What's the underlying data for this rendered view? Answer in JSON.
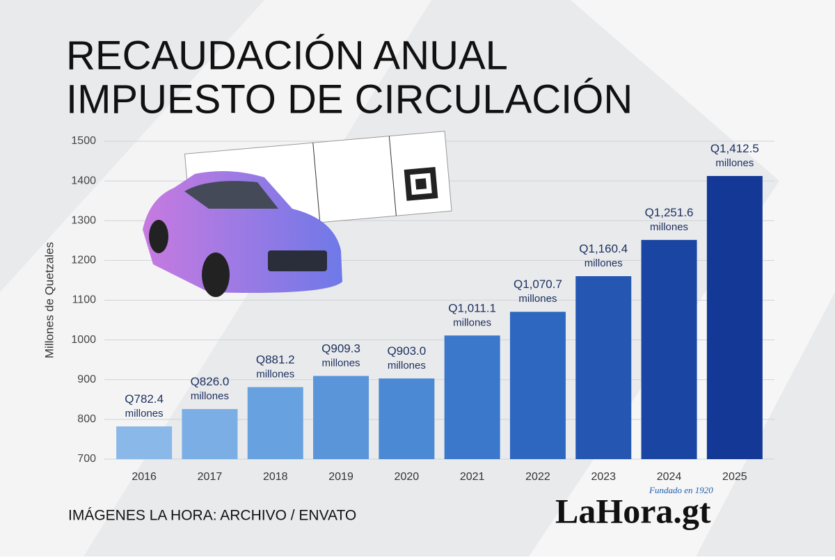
{
  "chart_data": {
    "type": "bar",
    "title": [
      "RECAUDACIÓN ANUAL",
      "IMPUESTO DE CIRCULACIÓN"
    ],
    "y_label": "Millones de Quetzales",
    "categories": [
      "2016",
      "2017",
      "2018",
      "2019",
      "2020",
      "2021",
      "2022",
      "2023",
      "2024",
      "2025"
    ],
    "values": [
      782.4,
      826.0,
      881.2,
      909.3,
      903.0,
      1011.1,
      1070.7,
      1160.4,
      1251.6,
      1412.5
    ],
    "value_labels": [
      "Q782.4 millones",
      "Q826.0 millones",
      "Q881.2 millones",
      "Q909.3 millones",
      "Q903.0 millones",
      "Q1,011.1 millones",
      "Q1,070.7 millones",
      "Q1,160.4 millones",
      "Q1,251.6 millones",
      "Q1,412.5 millones"
    ],
    "colors": [
      "#8ab8e8",
      "#7aaee4",
      "#68a1df",
      "#5a95da",
      "#4c89d4",
      "#3b78cc",
      "#2e67c0",
      "#2456b2",
      "#1b45a3",
      "#143896"
    ],
    "ylim": [
      700,
      1500
    ],
    "yticks": [
      700,
      800,
      900,
      1000,
      1100,
      1200,
      1300,
      1400,
      1500
    ],
    "grid": true
  },
  "credit": "IMÁGENES LA HORA: ARCHIVO / ENVATO",
  "logo": {
    "name": "LaHora.gt",
    "tagline": "Fundado en 1920"
  }
}
